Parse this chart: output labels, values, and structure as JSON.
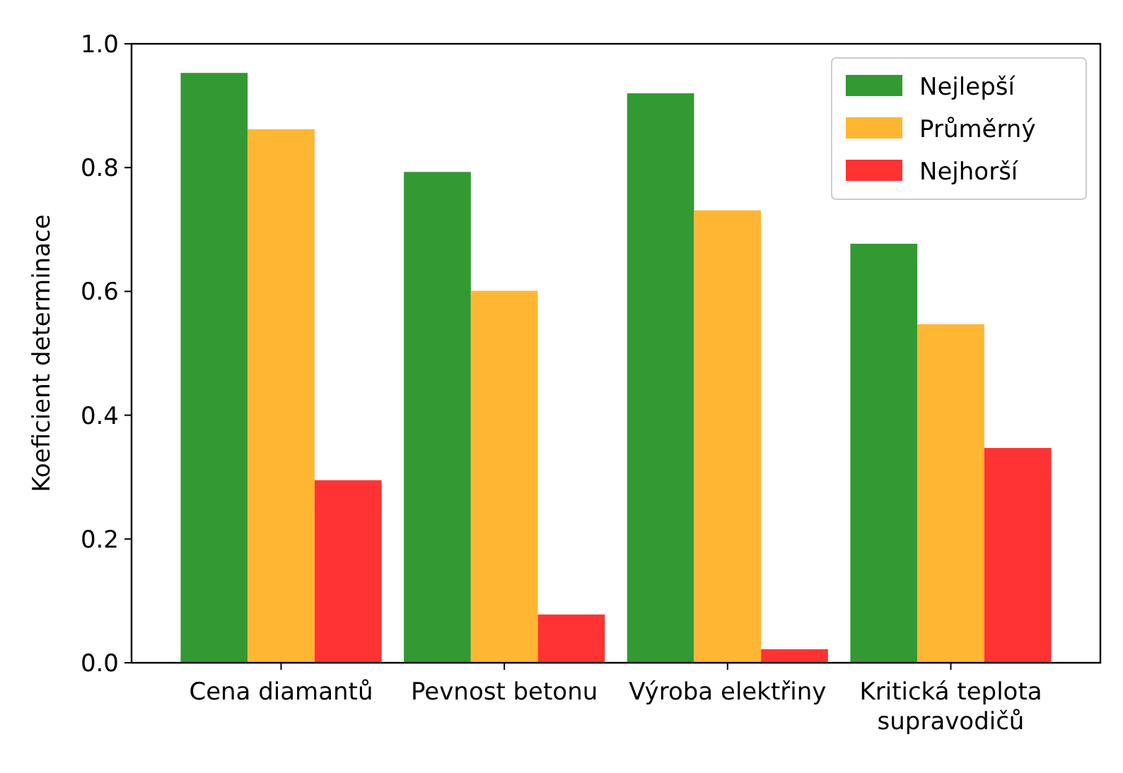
{
  "chart_data": {
    "type": "bar",
    "ylabel": "Koeficient determinace",
    "categories": [
      "Cena diamantů",
      "Pevnost betonu",
      "Výroba elektřiny",
      "Kritická teplota supravodičů"
    ],
    "series": [
      {
        "name": "Nejlepší",
        "color": "#339933",
        "values": [
          0.953,
          0.793,
          0.92,
          0.677
        ]
      },
      {
        "name": "Průměrný",
        "color": "#ffb733",
        "values": [
          0.862,
          0.601,
          0.731,
          0.547
        ]
      },
      {
        "name": "Nejhorší",
        "color": "#ff3333",
        "values": [
          0.295,
          0.078,
          0.022,
          0.347
        ]
      }
    ],
    "ylim": [
      0,
      1
    ],
    "yticks": [
      {
        "value": 0,
        "label": "0.0"
      },
      {
        "value": 0.2,
        "label": "0.2"
      },
      {
        "value": 0.4,
        "label": "0.4"
      },
      {
        "value": 0.6,
        "label": "0.6"
      },
      {
        "value": 0.8,
        "label": "0.8"
      },
      {
        "value": 1,
        "label": "1.0"
      }
    ],
    "grid": false,
    "legend": "top right"
  }
}
